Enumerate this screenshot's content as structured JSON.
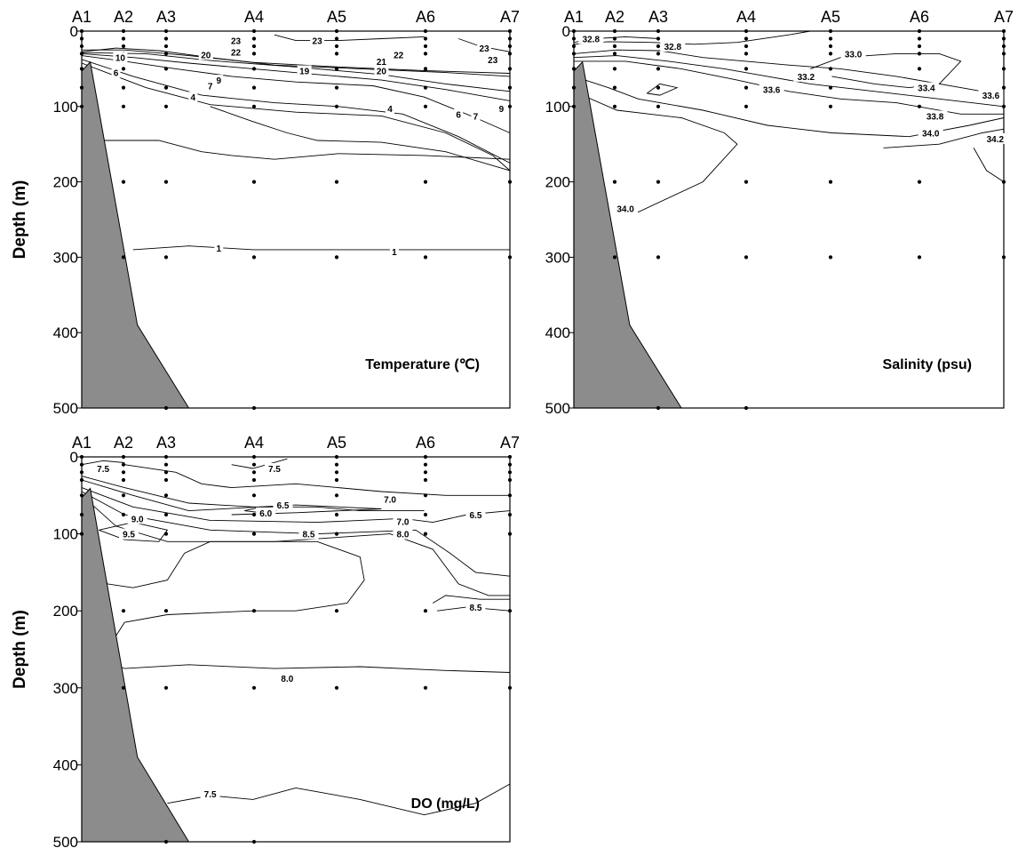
{
  "chart_data": [
    {
      "type": "contour",
      "title": "Temperature (℃)",
      "ylabel": "Depth (m)",
      "ylim": [
        500,
        0
      ],
      "yticks": [
        0,
        100,
        200,
        300,
        400,
        500
      ],
      "stations": [
        "A1",
        "A2",
        "A3",
        "A4",
        "A5",
        "A6",
        "A7"
      ],
      "sample_depths": [
        [
          0,
          10,
          20,
          30,
          50,
          75,
          100
        ],
        [
          0,
          10,
          20,
          30,
          50,
          75,
          100,
          200,
          300
        ],
        [
          0,
          10,
          20,
          30,
          50,
          75,
          100,
          200,
          300,
          500
        ],
        [
          0,
          10,
          20,
          30,
          50,
          75,
          100,
          200,
          300,
          500
        ],
        [
          0,
          10,
          20,
          30,
          50,
          75,
          100,
          200,
          300
        ],
        [
          0,
          10,
          20,
          30,
          50,
          75,
          100,
          200,
          300
        ],
        [
          0,
          10,
          20,
          30,
          50,
          75,
          100,
          200,
          300
        ]
      ],
      "contour_labels": [
        "23",
        "23",
        "22",
        "20",
        "22",
        "21",
        "19",
        "20",
        "23",
        "23",
        "10",
        "9",
        "6",
        "7",
        "4",
        "4",
        "6",
        "7",
        "9",
        "1",
        "1"
      ],
      "contour_levels": [
        1,
        4,
        6,
        7,
        9,
        10,
        19,
        20,
        21,
        22,
        23
      ]
    },
    {
      "type": "contour",
      "title": "Salinity (psu)",
      "ylabel": "",
      "ylim": [
        500,
        0
      ],
      "yticks": [
        0,
        100,
        200,
        300,
        400,
        500
      ],
      "stations": [
        "A1",
        "A2",
        "A3",
        "A4",
        "A5",
        "A6",
        "A7"
      ],
      "sample_depths": [
        [
          0,
          10,
          20,
          30,
          50,
          75,
          100
        ],
        [
          0,
          10,
          20,
          30,
          50,
          75,
          100,
          200,
          300
        ],
        [
          0,
          10,
          20,
          30,
          50,
          75,
          100,
          200,
          300,
          500
        ],
        [
          0,
          10,
          20,
          30,
          50,
          75,
          100,
          200,
          300,
          500
        ],
        [
          0,
          10,
          20,
          30,
          50,
          75,
          100,
          200,
          300
        ],
        [
          0,
          10,
          20,
          30,
          50,
          75,
          100,
          200,
          300
        ],
        [
          0,
          10,
          20,
          30,
          50,
          75,
          100,
          200,
          300
        ]
      ],
      "contour_labels": [
        "32.8",
        "32.8",
        "33.0",
        "33.2",
        "33.4",
        "33.6",
        "33.6",
        "33.8",
        "34.0",
        "34.2",
        "34.0"
      ],
      "contour_levels": [
        32.8,
        33.0,
        33.2,
        33.4,
        33.6,
        33.8,
        34.0,
        34.2
      ]
    },
    {
      "type": "contour",
      "title": "DO (mg/L)",
      "ylabel": "Depth (m)",
      "ylim": [
        500,
        0
      ],
      "yticks": [
        0,
        100,
        200,
        300,
        400,
        500
      ],
      "stations": [
        "A1",
        "A2",
        "A3",
        "A4",
        "A5",
        "A6",
        "A7"
      ],
      "sample_depths": [
        [
          0,
          10,
          20,
          30,
          50,
          75,
          100
        ],
        [
          0,
          10,
          20,
          30,
          50,
          75,
          100,
          200,
          300
        ],
        [
          0,
          10,
          20,
          30,
          50,
          75,
          100,
          200,
          300,
          500
        ],
        [
          0,
          10,
          20,
          30,
          50,
          75,
          100,
          200,
          300,
          500
        ],
        [
          0,
          10,
          20,
          30,
          50,
          75,
          100,
          200,
          300
        ],
        [
          0,
          10,
          20,
          30,
          50,
          75,
          100,
          200,
          300
        ],
        [
          0,
          10,
          20,
          30,
          50,
          75,
          100,
          200,
          300
        ]
      ],
      "contour_labels": [
        "7.5",
        "7.5",
        "6.5",
        "7.0",
        "6.0",
        "9.0",
        "7.0",
        "6.5",
        "9.5",
        "8.5",
        "8.0",
        "8.5",
        "8.0",
        "7.5"
      ],
      "contour_levels": [
        6.0,
        6.5,
        7.0,
        7.5,
        8.0,
        8.5,
        9.0,
        9.5
      ]
    }
  ]
}
